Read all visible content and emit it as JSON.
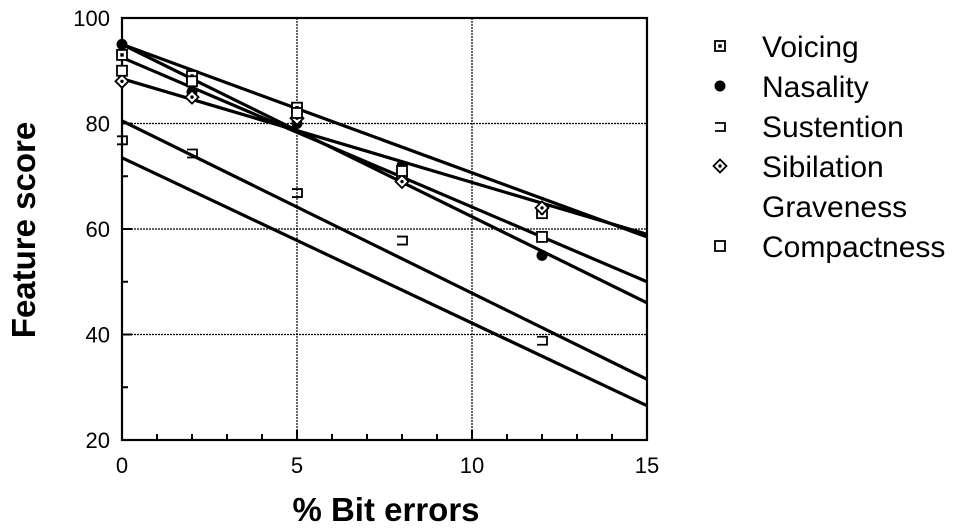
{
  "chart_data": {
    "type": "scatter",
    "xlabel": "% Bit errors",
    "ylabel": "Feature score",
    "xlim": [
      0,
      15
    ],
    "ylim": [
      20,
      100
    ],
    "xticks": [
      0,
      5,
      10,
      15
    ],
    "yticks": [
      20,
      40,
      60,
      80,
      100
    ],
    "grid": true,
    "legend_position": "right",
    "series": [
      {
        "name": "Voicing",
        "marker": "square-dot",
        "points": [
          [
            0,
            93
          ],
          [
            2,
            89
          ],
          [
            5,
            83
          ],
          [
            8,
            70
          ],
          [
            12,
            63
          ]
        ],
        "fit": [
          95,
          58.5
        ]
      },
      {
        "name": "Nasality",
        "marker": "filled-circle",
        "points": [
          [
            0,
            95
          ],
          [
            2,
            86
          ],
          [
            5,
            80
          ],
          [
            8,
            72
          ],
          [
            12,
            55
          ]
        ],
        "fit": [
          95,
          46
        ]
      },
      {
        "name": "Sustention",
        "marker": "corner",
        "points": [
          [
            0,
            77
          ],
          [
            2,
            74.5
          ],
          [
            5,
            67
          ],
          [
            8,
            58
          ],
          [
            12,
            39
          ]
        ],
        "fit": [
          80.5,
          31.5
        ]
      },
      {
        "name": "Sibilation",
        "marker": "diamond-dot",
        "points": [
          [
            0,
            88
          ],
          [
            2,
            85
          ],
          [
            5,
            81
          ],
          [
            8,
            69
          ],
          [
            12,
            64
          ]
        ],
        "fit": [
          88.5,
          59
        ]
      },
      {
        "name": "Graveness",
        "marker": "none",
        "points": [],
        "fit": [
          73.5,
          26.5
        ]
      },
      {
        "name": "Compactness",
        "marker": "open-square",
        "points": [
          [
            0,
            90
          ],
          [
            2,
            88
          ],
          [
            5,
            82
          ],
          [
            8,
            71
          ],
          [
            12,
            58.5
          ]
        ],
        "fit": [
          92.5,
          50
        ]
      }
    ]
  }
}
